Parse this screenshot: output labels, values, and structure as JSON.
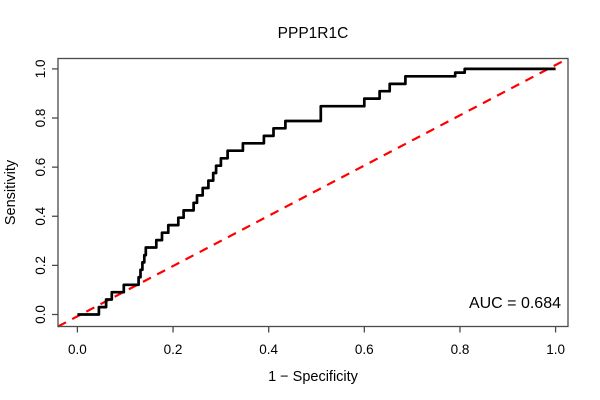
{
  "title": "PPP1R1C",
  "axes": {
    "x_label": "1 − Specificity",
    "y_label": "Sensitivity",
    "x_tick_labels": [
      "0.0",
      "0.2",
      "0.4",
      "0.6",
      "0.8",
      "1.0"
    ],
    "y_tick_labels": [
      "0.0",
      "0.2",
      "0.4",
      "0.6",
      "0.8",
      "1.0"
    ],
    "x_tick_values": [
      0,
      0.2,
      0.4,
      0.6,
      0.8,
      1.0
    ],
    "y_tick_values": [
      0,
      0.2,
      0.4,
      0.6,
      0.8,
      1.0
    ]
  },
  "annotation": {
    "auc_label": "AUC = 0.684",
    "auc_value": 0.684
  },
  "colors": {
    "curve": "#000000",
    "diagonal": "#ff0000",
    "axis": "#4a4a4a",
    "text": "#000000",
    "background": "#ffffff"
  },
  "chart_data": {
    "type": "line",
    "subtype": "roc-step-curve",
    "title": "PPP1R1C",
    "xlabel": "1 − Specificity",
    "ylabel": "Sensitivity",
    "xlim": [
      0,
      1
    ],
    "ylim": [
      0,
      1
    ],
    "grid": false,
    "legend": "none",
    "auc": 0.684,
    "diagonal_reference": {
      "style": "dashed",
      "color": "#ff0000",
      "from": [
        0,
        0
      ],
      "to": [
        1,
        1
      ]
    },
    "series": [
      {
        "name": "ROC curve (PPP1R1C)",
        "color": "#000000",
        "step_points": [
          [
            0.0,
            0.0
          ],
          [
            0.045,
            0.03
          ],
          [
            0.06,
            0.061
          ],
          [
            0.072,
            0.091
          ],
          [
            0.097,
            0.121
          ],
          [
            0.128,
            0.152
          ],
          [
            0.132,
            0.182
          ],
          [
            0.136,
            0.212
          ],
          [
            0.14,
            0.242
          ],
          [
            0.143,
            0.273
          ],
          [
            0.165,
            0.303
          ],
          [
            0.177,
            0.333
          ],
          [
            0.19,
            0.364
          ],
          [
            0.211,
            0.394
          ],
          [
            0.222,
            0.424
          ],
          [
            0.243,
            0.455
          ],
          [
            0.25,
            0.485
          ],
          [
            0.262,
            0.515
          ],
          [
            0.274,
            0.545
          ],
          [
            0.284,
            0.576
          ],
          [
            0.29,
            0.606
          ],
          [
            0.3,
            0.636
          ],
          [
            0.314,
            0.667
          ],
          [
            0.346,
            0.697
          ],
          [
            0.39,
            0.727
          ],
          [
            0.41,
            0.758
          ],
          [
            0.435,
            0.788
          ],
          [
            0.509,
            0.848
          ],
          [
            0.6,
            0.879
          ],
          [
            0.632,
            0.909
          ],
          [
            0.653,
            0.939
          ],
          [
            0.686,
            0.97
          ],
          [
            0.79,
            0.985
          ],
          [
            0.81,
            1.0
          ],
          [
            1.0,
            1.0
          ]
        ]
      }
    ]
  }
}
